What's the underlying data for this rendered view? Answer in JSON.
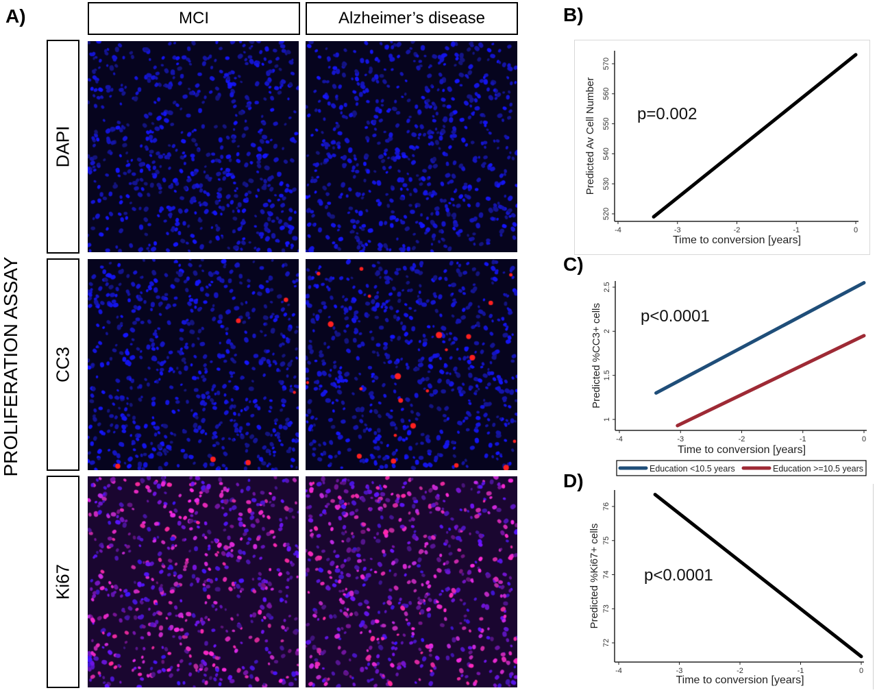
{
  "figure": {
    "panel_a_label": "A)",
    "panel_b_label": "B)",
    "panel_c_label": "C)",
    "panel_d_label": "D)",
    "side_title": "PROLIFERATION ASSAY",
    "columns": [
      "MCI",
      "Alzheimer’s disease"
    ],
    "rows": [
      "DAPI",
      "CC3",
      "Ki67"
    ],
    "stain_colors": {
      "nuclei": "#1a1aff",
      "cc3": "#ff2020",
      "ki67": "#ff3aa8"
    }
  },
  "chart_data": [
    {
      "type": "line",
      "panel": "B)",
      "annotation": "p=0.002",
      "xlabel": "Time to conversion [years]",
      "ylabel": "Predicted Av Cell Number",
      "xlim": [
        -4,
        0
      ],
      "ylim": [
        518,
        574
      ],
      "xticks": [
        "-4",
        "-3",
        "-2",
        "-1",
        "0"
      ],
      "yticks": [
        "520",
        "530",
        "540",
        "550",
        "560",
        "570"
      ],
      "series": [
        {
          "x": [
            -3.4,
            0
          ],
          "y": [
            519,
            573
          ],
          "color": "#000000"
        }
      ]
    },
    {
      "type": "line",
      "panel": "C)",
      "annotation": "p<0.0001",
      "xlabel": "Time to conversion [years]",
      "ylabel": "Predicted %CC3+ cells",
      "xlim": [
        -4,
        0
      ],
      "ylim": [
        0.9,
        2.6
      ],
      "xticks": [
        "-4",
        "-3",
        "-2",
        "-1",
        "0"
      ],
      "yticks": [
        "1",
        "1.5",
        "2",
        "2.5"
      ],
      "legend_position": "bottom",
      "series": [
        {
          "name": "Education <10.5 years",
          "x": [
            -3.4,
            0
          ],
          "y": [
            1.3,
            2.55
          ],
          "color": "#1f4e79"
        },
        {
          "name": "Education >=10.5 years",
          "x": [
            -3.05,
            0
          ],
          "y": [
            0.93,
            1.95
          ],
          "color": "#9e2a35"
        }
      ]
    },
    {
      "type": "line",
      "panel": "D)",
      "annotation": "p<0.0001",
      "xlabel": "Time to conversion [years]",
      "ylabel": "Predicted %Ki67+ cells",
      "xlim": [
        -4,
        0
      ],
      "ylim": [
        71.5,
        76.5
      ],
      "xticks": [
        "-4",
        "-3",
        "-2",
        "-1",
        "0"
      ],
      "yticks": [
        "72",
        "73",
        "74",
        "75",
        "76"
      ],
      "series": [
        {
          "x": [
            -3.4,
            0
          ],
          "y": [
            76.35,
            71.6
          ],
          "color": "#000000"
        }
      ]
    }
  ]
}
